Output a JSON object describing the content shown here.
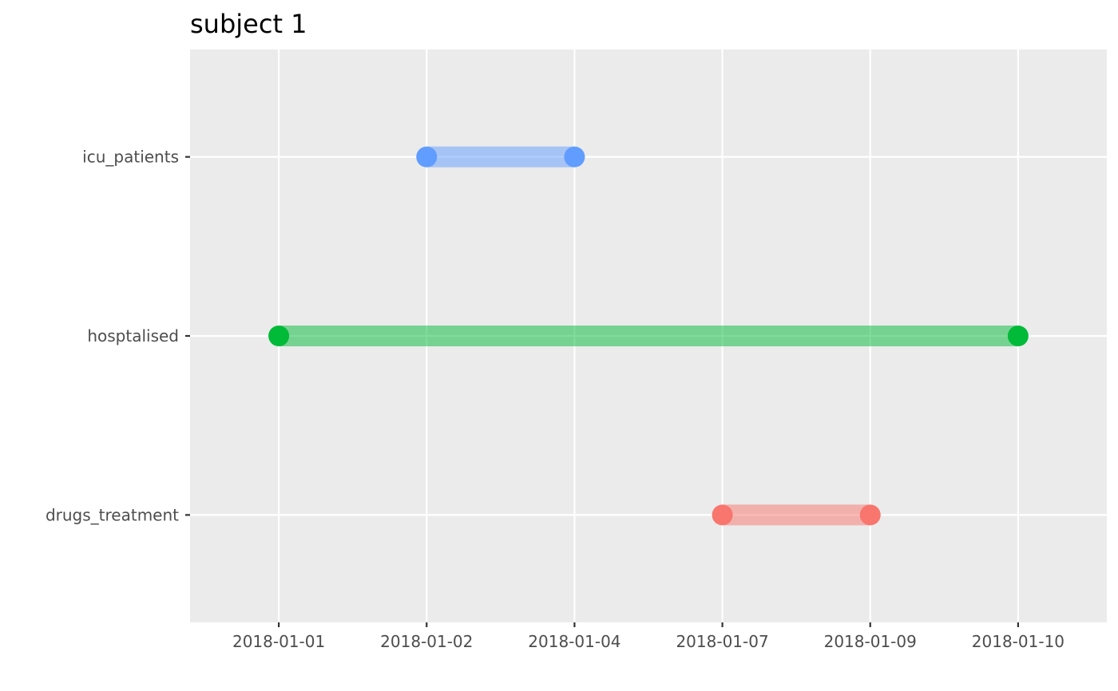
{
  "chart_data": {
    "type": "timeline",
    "title": "subject 1",
    "xlabel": "",
    "ylabel": "",
    "x_axis": {
      "kind": "categorical-date",
      "tick_labels": [
        "2018-01-01",
        "2018-01-02",
        "2018-01-04",
        "2018-01-07",
        "2018-01-09",
        "2018-01-10"
      ]
    },
    "y_axis": {
      "categories": [
        "icu_patients",
        "hosptalised",
        "drugs_treatment"
      ]
    },
    "grid": true,
    "legend": "none",
    "panel_background": "#ebebeb",
    "series": [
      {
        "category": "icu_patients",
        "start": "2018-01-02",
        "end": "2018-01-04",
        "color": "#619cff"
      },
      {
        "category": "hosptalised",
        "start": "2018-01-01",
        "end": "2018-01-10",
        "color": "#00ba38"
      },
      {
        "category": "drugs_treatment",
        "start": "2018-01-07",
        "end": "2018-01-09",
        "color": "#f8766d"
      }
    ]
  }
}
